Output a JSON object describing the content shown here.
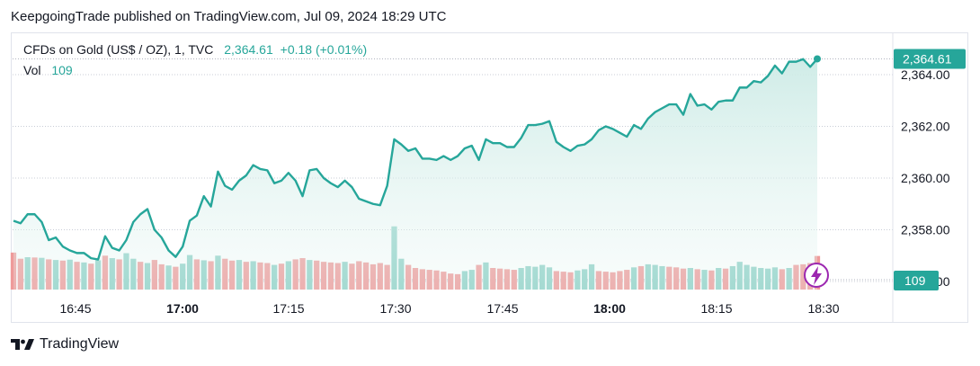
{
  "header": {
    "published": "KeepgoingTrade published on TradingView.com, Jul 09, 2024 18:29 UTC"
  },
  "legend": {
    "symbol": "CFDs on Gold (US$ / OZ), 1, TVC",
    "price": "2,364.61",
    "change": "+0.18 (+0.01%)"
  },
  "volume_legend": {
    "label": "Vol",
    "value": "109"
  },
  "footer": {
    "brand": "TradingView"
  },
  "colors": {
    "line": "#26a69a",
    "area_top": "#cdebe6",
    "up_volume": "#8fd1c7",
    "down_volume": "#ef9a9a",
    "price_tag": "#26a69a",
    "lightning": "#9c27b0"
  },
  "chart_data": {
    "type": "area",
    "symbol": "CFDs on Gold (US$ / OZ), 1, TVC",
    "interval": "1 minute",
    "x_ticks": [
      {
        "label": "16:45",
        "bold": false
      },
      {
        "label": "17:00",
        "bold": true
      },
      {
        "label": "17:15",
        "bold": false
      },
      {
        "label": "17:30",
        "bold": false
      },
      {
        "label": "17:45",
        "bold": false
      },
      {
        "label": "18:00",
        "bold": true
      },
      {
        "label": "18:15",
        "bold": false
      },
      {
        "label": "18:30",
        "bold": false
      }
    ],
    "y_ticks": [
      {
        "value": 2358,
        "label": "2,358.00"
      },
      {
        "value": 2360,
        "label": "2,360.00"
      },
      {
        "value": 2362,
        "label": "2,362.00"
      },
      {
        "value": 2364,
        "label": "2,364.00"
      },
      {
        "value": 2356,
        "label": "2,356.00"
      }
    ],
    "last_price": {
      "value": 2364.61,
      "label": "2,364.61"
    },
    "last_volume": {
      "value": 109,
      "label": "109"
    },
    "price_series": [
      2358.35,
      2358.25,
      2358.6,
      2358.6,
      2358.3,
      2357.6,
      2357.7,
      2357.35,
      2357.2,
      2357.1,
      2357.1,
      2356.9,
      2356.85,
      2357.75,
      2357.3,
      2357.2,
      2357.6,
      2358.3,
      2358.6,
      2358.8,
      2358.0,
      2357.7,
      2357.2,
      2356.95,
      2357.35,
      2358.35,
      2358.55,
      2359.3,
      2358.9,
      2360.25,
      2359.7,
      2359.55,
      2359.9,
      2360.1,
      2360.5,
      2360.35,
      2360.3,
      2359.8,
      2359.9,
      2360.2,
      2359.9,
      2359.3,
      2360.3,
      2360.35,
      2360.0,
      2359.8,
      2359.65,
      2359.9,
      2359.65,
      2359.2,
      2359.1,
      2359.0,
      2358.95,
      2359.7,
      2361.5,
      2361.3,
      2361.05,
      2361.15,
      2360.75,
      2360.75,
      2360.7,
      2360.85,
      2360.7,
      2360.85,
      2361.15,
      2361.25,
      2360.7,
      2361.5,
      2361.35,
      2361.35,
      2361.2,
      2361.2,
      2361.55,
      2362.05,
      2362.05,
      2362.1,
      2362.2,
      2361.4,
      2361.2,
      2361.05,
      2361.25,
      2361.3,
      2361.5,
      2361.85,
      2362.0,
      2361.9,
      2361.75,
      2361.6,
      2362.05,
      2361.9,
      2362.3,
      2362.55,
      2362.7,
      2362.85,
      2362.85,
      2362.45,
      2363.25,
      2362.8,
      2362.85,
      2362.65,
      2362.95,
      2363.0,
      2363.0,
      2363.5,
      2363.5,
      2363.75,
      2363.7,
      2363.95,
      2364.35,
      2364.05,
      2364.5,
      2364.5,
      2364.6,
      2364.3,
      2364.61
    ],
    "volume_series": [
      {
        "v": 120,
        "up": false
      },
      {
        "v": 100,
        "up": false
      },
      {
        "v": 105,
        "up": true
      },
      {
        "v": 104,
        "up": false
      },
      {
        "v": 103,
        "up": true
      },
      {
        "v": 98,
        "up": false
      },
      {
        "v": 96,
        "up": true
      },
      {
        "v": 94,
        "up": false
      },
      {
        "v": 97,
        "up": true
      },
      {
        "v": 90,
        "up": false
      },
      {
        "v": 88,
        "up": true
      },
      {
        "v": 84,
        "up": false
      },
      {
        "v": 95,
        "up": true
      },
      {
        "v": 110,
        "up": false
      },
      {
        "v": 102,
        "up": true
      },
      {
        "v": 98,
        "up": false
      },
      {
        "v": 118,
        "up": true
      },
      {
        "v": 100,
        "up": true
      },
      {
        "v": 90,
        "up": false
      },
      {
        "v": 86,
        "up": true
      },
      {
        "v": 96,
        "up": false
      },
      {
        "v": 82,
        "up": false
      },
      {
        "v": 78,
        "up": true
      },
      {
        "v": 74,
        "up": false
      },
      {
        "v": 84,
        "up": true
      },
      {
        "v": 112,
        "up": true
      },
      {
        "v": 98,
        "up": false
      },
      {
        "v": 95,
        "up": true
      },
      {
        "v": 92,
        "up": false
      },
      {
        "v": 110,
        "up": true
      },
      {
        "v": 100,
        "up": false
      },
      {
        "v": 94,
        "up": false
      },
      {
        "v": 96,
        "up": true
      },
      {
        "v": 90,
        "up": false
      },
      {
        "v": 92,
        "up": true
      },
      {
        "v": 88,
        "up": false
      },
      {
        "v": 86,
        "up": false
      },
      {
        "v": 80,
        "up": true
      },
      {
        "v": 84,
        "up": false
      },
      {
        "v": 92,
        "up": true
      },
      {
        "v": 98,
        "up": false
      },
      {
        "v": 102,
        "up": false
      },
      {
        "v": 96,
        "up": true
      },
      {
        "v": 94,
        "up": false
      },
      {
        "v": 90,
        "up": false
      },
      {
        "v": 88,
        "up": false
      },
      {
        "v": 86,
        "up": false
      },
      {
        "v": 90,
        "up": true
      },
      {
        "v": 84,
        "up": false
      },
      {
        "v": 92,
        "up": false
      },
      {
        "v": 88,
        "up": false
      },
      {
        "v": 82,
        "up": false
      },
      {
        "v": 86,
        "up": false
      },
      {
        "v": 80,
        "up": false
      },
      {
        "v": 205,
        "up": true
      },
      {
        "v": 100,
        "up": true
      },
      {
        "v": 80,
        "up": false
      },
      {
        "v": 70,
        "up": false
      },
      {
        "v": 66,
        "up": false
      },
      {
        "v": 64,
        "up": false
      },
      {
        "v": 62,
        "up": false
      },
      {
        "v": 58,
        "up": false
      },
      {
        "v": 52,
        "up": false
      },
      {
        "v": 50,
        "up": false
      },
      {
        "v": 60,
        "up": true
      },
      {
        "v": 64,
        "up": true
      },
      {
        "v": 80,
        "up": false
      },
      {
        "v": 88,
        "up": true
      },
      {
        "v": 70,
        "up": false
      },
      {
        "v": 68,
        "up": false
      },
      {
        "v": 66,
        "up": false
      },
      {
        "v": 64,
        "up": false
      },
      {
        "v": 70,
        "up": true
      },
      {
        "v": 76,
        "up": true
      },
      {
        "v": 74,
        "up": true
      },
      {
        "v": 80,
        "up": true
      },
      {
        "v": 72,
        "up": true
      },
      {
        "v": 60,
        "up": false
      },
      {
        "v": 58,
        "up": false
      },
      {
        "v": 56,
        "up": false
      },
      {
        "v": 62,
        "up": true
      },
      {
        "v": 66,
        "up": true
      },
      {
        "v": 82,
        "up": true
      },
      {
        "v": 60,
        "up": false
      },
      {
        "v": 58,
        "up": false
      },
      {
        "v": 56,
        "up": false
      },
      {
        "v": 60,
        "up": false
      },
      {
        "v": 64,
        "up": false
      },
      {
        "v": 72,
        "up": true
      },
      {
        "v": 76,
        "up": false
      },
      {
        "v": 82,
        "up": true
      },
      {
        "v": 80,
        "up": true
      },
      {
        "v": 76,
        "up": true
      },
      {
        "v": 74,
        "up": false
      },
      {
        "v": 72,
        "up": false
      },
      {
        "v": 68,
        "up": false
      },
      {
        "v": 70,
        "up": true
      },
      {
        "v": 66,
        "up": false
      },
      {
        "v": 64,
        "up": true
      },
      {
        "v": 62,
        "up": false
      },
      {
        "v": 70,
        "up": true
      },
      {
        "v": 68,
        "up": false
      },
      {
        "v": 76,
        "up": true
      },
      {
        "v": 90,
        "up": true
      },
      {
        "v": 80,
        "up": true
      },
      {
        "v": 74,
        "up": true
      },
      {
        "v": 70,
        "up": true
      },
      {
        "v": 68,
        "up": true
      },
      {
        "v": 72,
        "up": true
      },
      {
        "v": 66,
        "up": false
      },
      {
        "v": 70,
        "up": true
      },
      {
        "v": 80,
        "up": false
      },
      {
        "v": 82,
        "up": false
      },
      {
        "v": 86,
        "up": false
      },
      {
        "v": 109,
        "up": false
      }
    ]
  }
}
